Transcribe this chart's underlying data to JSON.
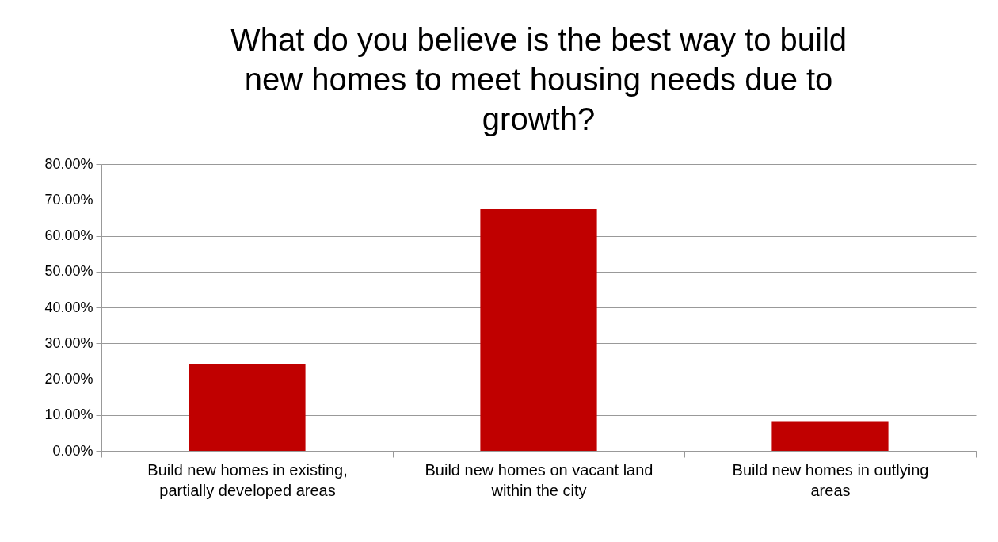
{
  "chart_data": {
    "type": "bar",
    "title": "What do you believe is the best way to build new homes to meet housing needs due to growth?",
    "categories": [
      "Build new homes in existing, partially developed areas",
      "Build new homes on vacant land within the city",
      "Build new homes in outlying areas"
    ],
    "values": [
      24.3,
      67.4,
      8.3
    ],
    "color": "#c00000",
    "ylim": [
      0,
      80
    ],
    "yticks": [
      {
        "value": 0,
        "label": "0.00%"
      },
      {
        "value": 10,
        "label": "10.00%"
      },
      {
        "value": 20,
        "label": "20.00%"
      },
      {
        "value": 30,
        "label": "30.00%"
      },
      {
        "value": 40,
        "label": "40.00%"
      },
      {
        "value": 50,
        "label": "50.00%"
      },
      {
        "value": 60,
        "label": "60.00%"
      },
      {
        "value": 70,
        "label": "70.00%"
      },
      {
        "value": 80,
        "label": "80.00%"
      }
    ],
    "grid": "y"
  }
}
